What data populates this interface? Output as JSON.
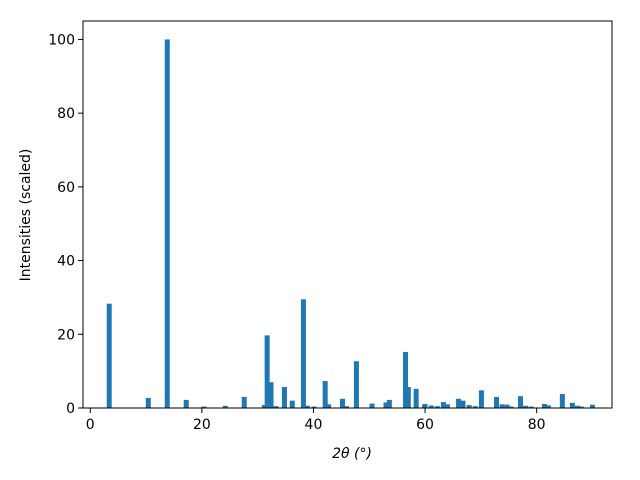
{
  "chart_data": {
    "type": "bar",
    "x_label": "2θ (°)",
    "y_label": "Intensities (scaled)",
    "color": "#1f77b4",
    "x": [
      3.4,
      10.4,
      13.8,
      17.2,
      20.4,
      24.2,
      27.6,
      31.2,
      31.7,
      32.4,
      33.3,
      34.8,
      36.2,
      38.2,
      38.9,
      40.1,
      42.1,
      42.7,
      45.2,
      45.9,
      47.7,
      50.5,
      53.0,
      53.6,
      56.5,
      57.0,
      58.4,
      59.9,
      60.0,
      61.1,
      62.2,
      63.3,
      64.0,
      66.0,
      66.8,
      67.9,
      69.0,
      70.1,
      72.8,
      73.8,
      74.7,
      75.4,
      77.1,
      78.0,
      79.0,
      81.4,
      82.1,
      84.6,
      86.4,
      87.3,
      88.0,
      90.0
    ],
    "values": [
      28.3,
      2.7,
      100,
      2.2,
      0.4,
      0.6,
      3.0,
      0.8,
      19.7,
      7.0,
      0.5,
      5.7,
      2.0,
      29.5,
      0.6,
      0.4,
      7.3,
      1.0,
      2.5,
      0.5,
      12.7,
      1.2,
      1.5,
      2.2,
      15.2,
      5.7,
      5.2,
      0.8,
      1.1,
      0.7,
      0.5,
      1.6,
      1.0,
      2.5,
      2.0,
      0.8,
      0.5,
      4.8,
      3.0,
      1.0,
      0.9,
      0.4,
      3.2,
      0.6,
      0.4,
      1.1,
      0.7,
      3.8,
      1.4,
      0.6,
      0.4,
      0.9
    ],
    "xlim": [
      -1.3,
      93.5
    ],
    "ylim": [
      0,
      105
    ],
    "xticks": [
      0,
      20,
      40,
      60,
      80
    ],
    "yticks": [
      0,
      20,
      40,
      60,
      80,
      100
    ]
  }
}
